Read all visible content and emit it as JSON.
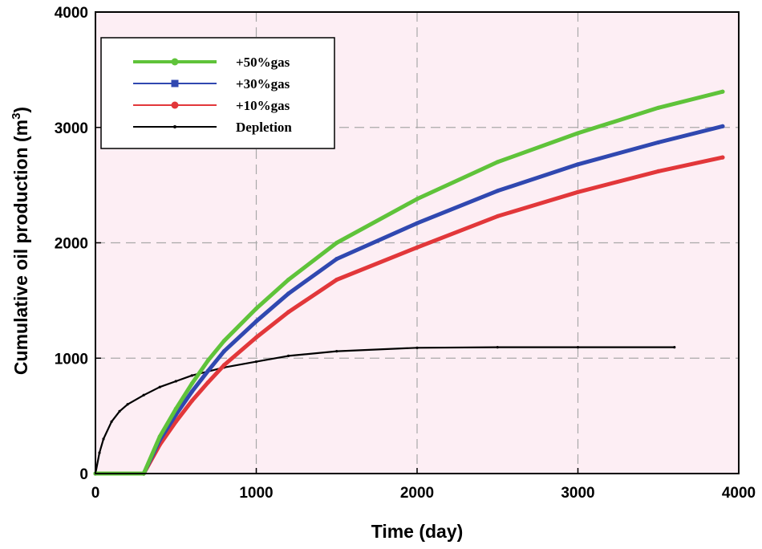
{
  "chart_data": {
    "type": "line",
    "title": "",
    "xlabel": "Time (day)",
    "ylabel": "Cumulative oil production (m",
    "ylabel_sup": "3",
    "ylabel_close": ")",
    "xlim": [
      0,
      4000
    ],
    "ylim": [
      0,
      4000
    ],
    "x_ticks": [
      0,
      1000,
      2000,
      3000,
      4000
    ],
    "y_ticks": [
      0,
      1000,
      2000,
      3000,
      4000
    ],
    "x_tick_labels": [
      "0",
      "1000",
      "2000",
      "3000",
      "4000"
    ],
    "y_tick_labels": [
      "0",
      "1000",
      "2000",
      "3000",
      "4000"
    ],
    "grid": true,
    "legend_position": "top-left",
    "series": [
      {
        "name": "+50%gas",
        "color": "#5fc33a",
        "marker": "circle",
        "x": [
          0,
          300,
          300,
          400,
          500,
          600,
          700,
          800,
          1000,
          1200,
          1500,
          2000,
          2500,
          3000,
          3500,
          3900
        ],
        "y": [
          0,
          0,
          0,
          320,
          560,
          780,
          980,
          1150,
          1430,
          1680,
          2000,
          2380,
          2700,
          2950,
          3170,
          3310
        ]
      },
      {
        "name": "+30%gas",
        "color": "#3048b0",
        "marker": "square",
        "x": [
          0,
          300,
          300,
          400,
          500,
          600,
          700,
          800,
          1000,
          1200,
          1500,
          2000,
          2500,
          3000,
          3500,
          3900
        ],
        "y": [
          0,
          0,
          0,
          290,
          510,
          710,
          890,
          1060,
          1320,
          1560,
          1860,
          2170,
          2450,
          2680,
          2870,
          3010
        ]
      },
      {
        "name": "+10%gas",
        "color": "#e2373a",
        "marker": "circle",
        "x": [
          0,
          300,
          300,
          400,
          500,
          600,
          700,
          800,
          1000,
          1200,
          1500,
          2000,
          2500,
          3000,
          3500,
          3900
        ],
        "y": [
          0,
          0,
          0,
          250,
          450,
          630,
          790,
          940,
          1180,
          1400,
          1680,
          1960,
          2230,
          2440,
          2620,
          2740
        ]
      },
      {
        "name": "Depletion",
        "color": "#000000",
        "marker": "dot",
        "x": [
          0,
          25,
          50,
          100,
          150,
          200,
          300,
          400,
          500,
          600,
          800,
          1000,
          1200,
          1500,
          2000,
          2500,
          3000,
          3600
        ],
        "y": [
          0,
          180,
          300,
          450,
          540,
          600,
          680,
          750,
          800,
          850,
          920,
          970,
          1020,
          1060,
          1090,
          1095,
          1095,
          1095
        ]
      }
    ]
  }
}
